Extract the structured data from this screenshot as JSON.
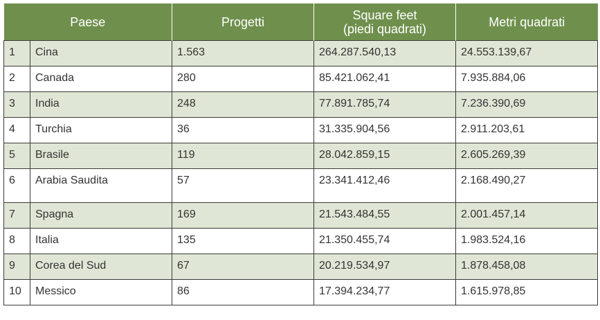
{
  "headers": {
    "num": "",
    "paese": "Paese",
    "progetti": "Progetti",
    "square_feet_line1": "Square feet",
    "square_feet_line2": "(piedi quadrati)",
    "metri": "Metri quadrati"
  },
  "rows": [
    {
      "n": "1",
      "paese": "Cina",
      "progetti": "1.563",
      "sqft": "264.287.540,13",
      "mq": "24.553.139,67"
    },
    {
      "n": "2",
      "paese": "Canada",
      "progetti": "280",
      "sqft": "85.421.062,41",
      "mq": "7.935.884,06"
    },
    {
      "n": "3",
      "paese": "India",
      "progetti": "248",
      "sqft": "77.891.785,74",
      "mq": "7.236.390,69"
    },
    {
      "n": "4",
      "paese": "Turchia",
      "progetti": "36",
      "sqft": "31.335.904,56",
      "mq": "2.911.203,61"
    },
    {
      "n": "5",
      "paese": "Brasile",
      "progetti": "119",
      "sqft": "28.042.859,15",
      "mq": "2.605.269,39"
    },
    {
      "n": "6",
      "paese": "Arabia Saudita",
      "progetti": "57",
      "sqft": "23.341.412,46",
      "mq": "2.168.490,27"
    },
    {
      "n": "7",
      "paese": "Spagna",
      "progetti": "169",
      "sqft": "21.543.484,55",
      "mq": "2.001.457,14"
    },
    {
      "n": "8",
      "paese": "Italia",
      "progetti": "135",
      "sqft": "21.350.455,74",
      "mq": "1.983.524,16"
    },
    {
      "n": "9",
      "paese": "Corea del Sud",
      "progetti": "67",
      "sqft": "20.219.534,97",
      "mq": "1.878.458,08"
    },
    {
      "n": "10",
      "paese": "Messico",
      "progetti": "86",
      "sqft": "17.394.234,77",
      "mq": "1.615.978,85"
    }
  ],
  "colors": {
    "header_bg": "#6f904d",
    "alt_row_bg": "#dfe6d5",
    "border": "#3a3a3a"
  }
}
